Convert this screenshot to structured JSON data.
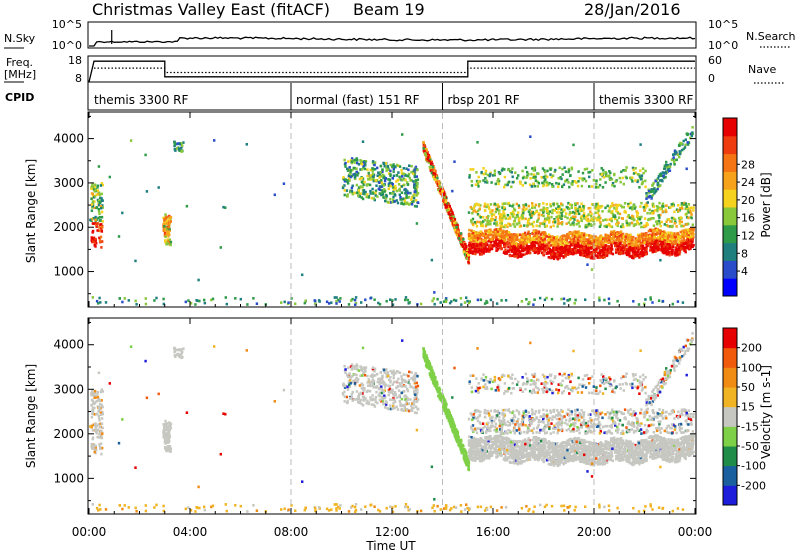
{
  "header": {
    "title": "Christmas Valley East (fitACF)",
    "beam": "Beam 19",
    "date": "28/Jan/2016"
  },
  "strips": {
    "nsky_label": "N.Sky",
    "nsky_scale": {
      "top": "10^5",
      "bottom": "10^0"
    },
    "nsearch_label": "N.Search",
    "freq_label": "Freq.",
    "freq_unit": "[MHz]",
    "freq_scale": {
      "top": "18",
      "bottom": "8"
    },
    "nave_label": "Nave",
    "nave_scale": {
      "top": "60",
      "bottom": "0"
    },
    "cpid_label": "CPID"
  },
  "cpid_segments": [
    {
      "label": "themis 3300 RF",
      "start_h": 0.0,
      "end_h": 8.0
    },
    {
      "label": "normal (fast) 151 RF",
      "start_h": 8.0,
      "end_h": 14.0
    },
    {
      "label": "rbsp 201 RF",
      "start_h": 14.0,
      "end_h": 20.0
    },
    {
      "label": "themis 3300 RF",
      "start_h": 20.0,
      "end_h": 24.0
    }
  ],
  "chart_data": [
    {
      "type": "heatmap",
      "quantity": "Power",
      "ylabel": "Slant Range [km]",
      "yticks": [
        1000,
        2000,
        3000,
        4000
      ],
      "ylim": [
        200,
        4600
      ],
      "colorbar_label": "Power [dB]",
      "colorbar_ticks": [
        "4",
        "8",
        "12",
        "16",
        "20",
        "24",
        "28"
      ],
      "colorbar_colors": [
        "#0000ff",
        "#2a4ccb",
        "#1f7f7f",
        "#2e9b48",
        "#88c83a",
        "#f4d21d",
        "#f6a21b",
        "#f57414",
        "#ee3c0e",
        "#e60000"
      ]
    },
    {
      "type": "heatmap",
      "quantity": "Velocity",
      "ylabel": "Slant Range [km]",
      "yticks": [
        1000,
        2000,
        3000,
        4000
      ],
      "ylim": [
        200,
        4600
      ],
      "colorbar_label": "Velocity [m s-1]",
      "colorbar_ticks": [
        "200",
        "100",
        "50",
        "15",
        "-15",
        "-50",
        "-100",
        "-200"
      ],
      "colorbar_colors": [
        "#1d1ddb",
        "#1a5f9e",
        "#208c4a",
        "#7ed046",
        "#c7c7c2",
        "#f0b323",
        "#f08b14",
        "#f05a0a",
        "#e60000"
      ]
    }
  ],
  "xaxis": {
    "label": "Time UT",
    "ticks": [
      "00:00",
      "04:00",
      "08:00",
      "12:00",
      "16:00",
      "20:00",
      "00:00"
    ],
    "xlim_hours": [
      0,
      24
    ]
  }
}
